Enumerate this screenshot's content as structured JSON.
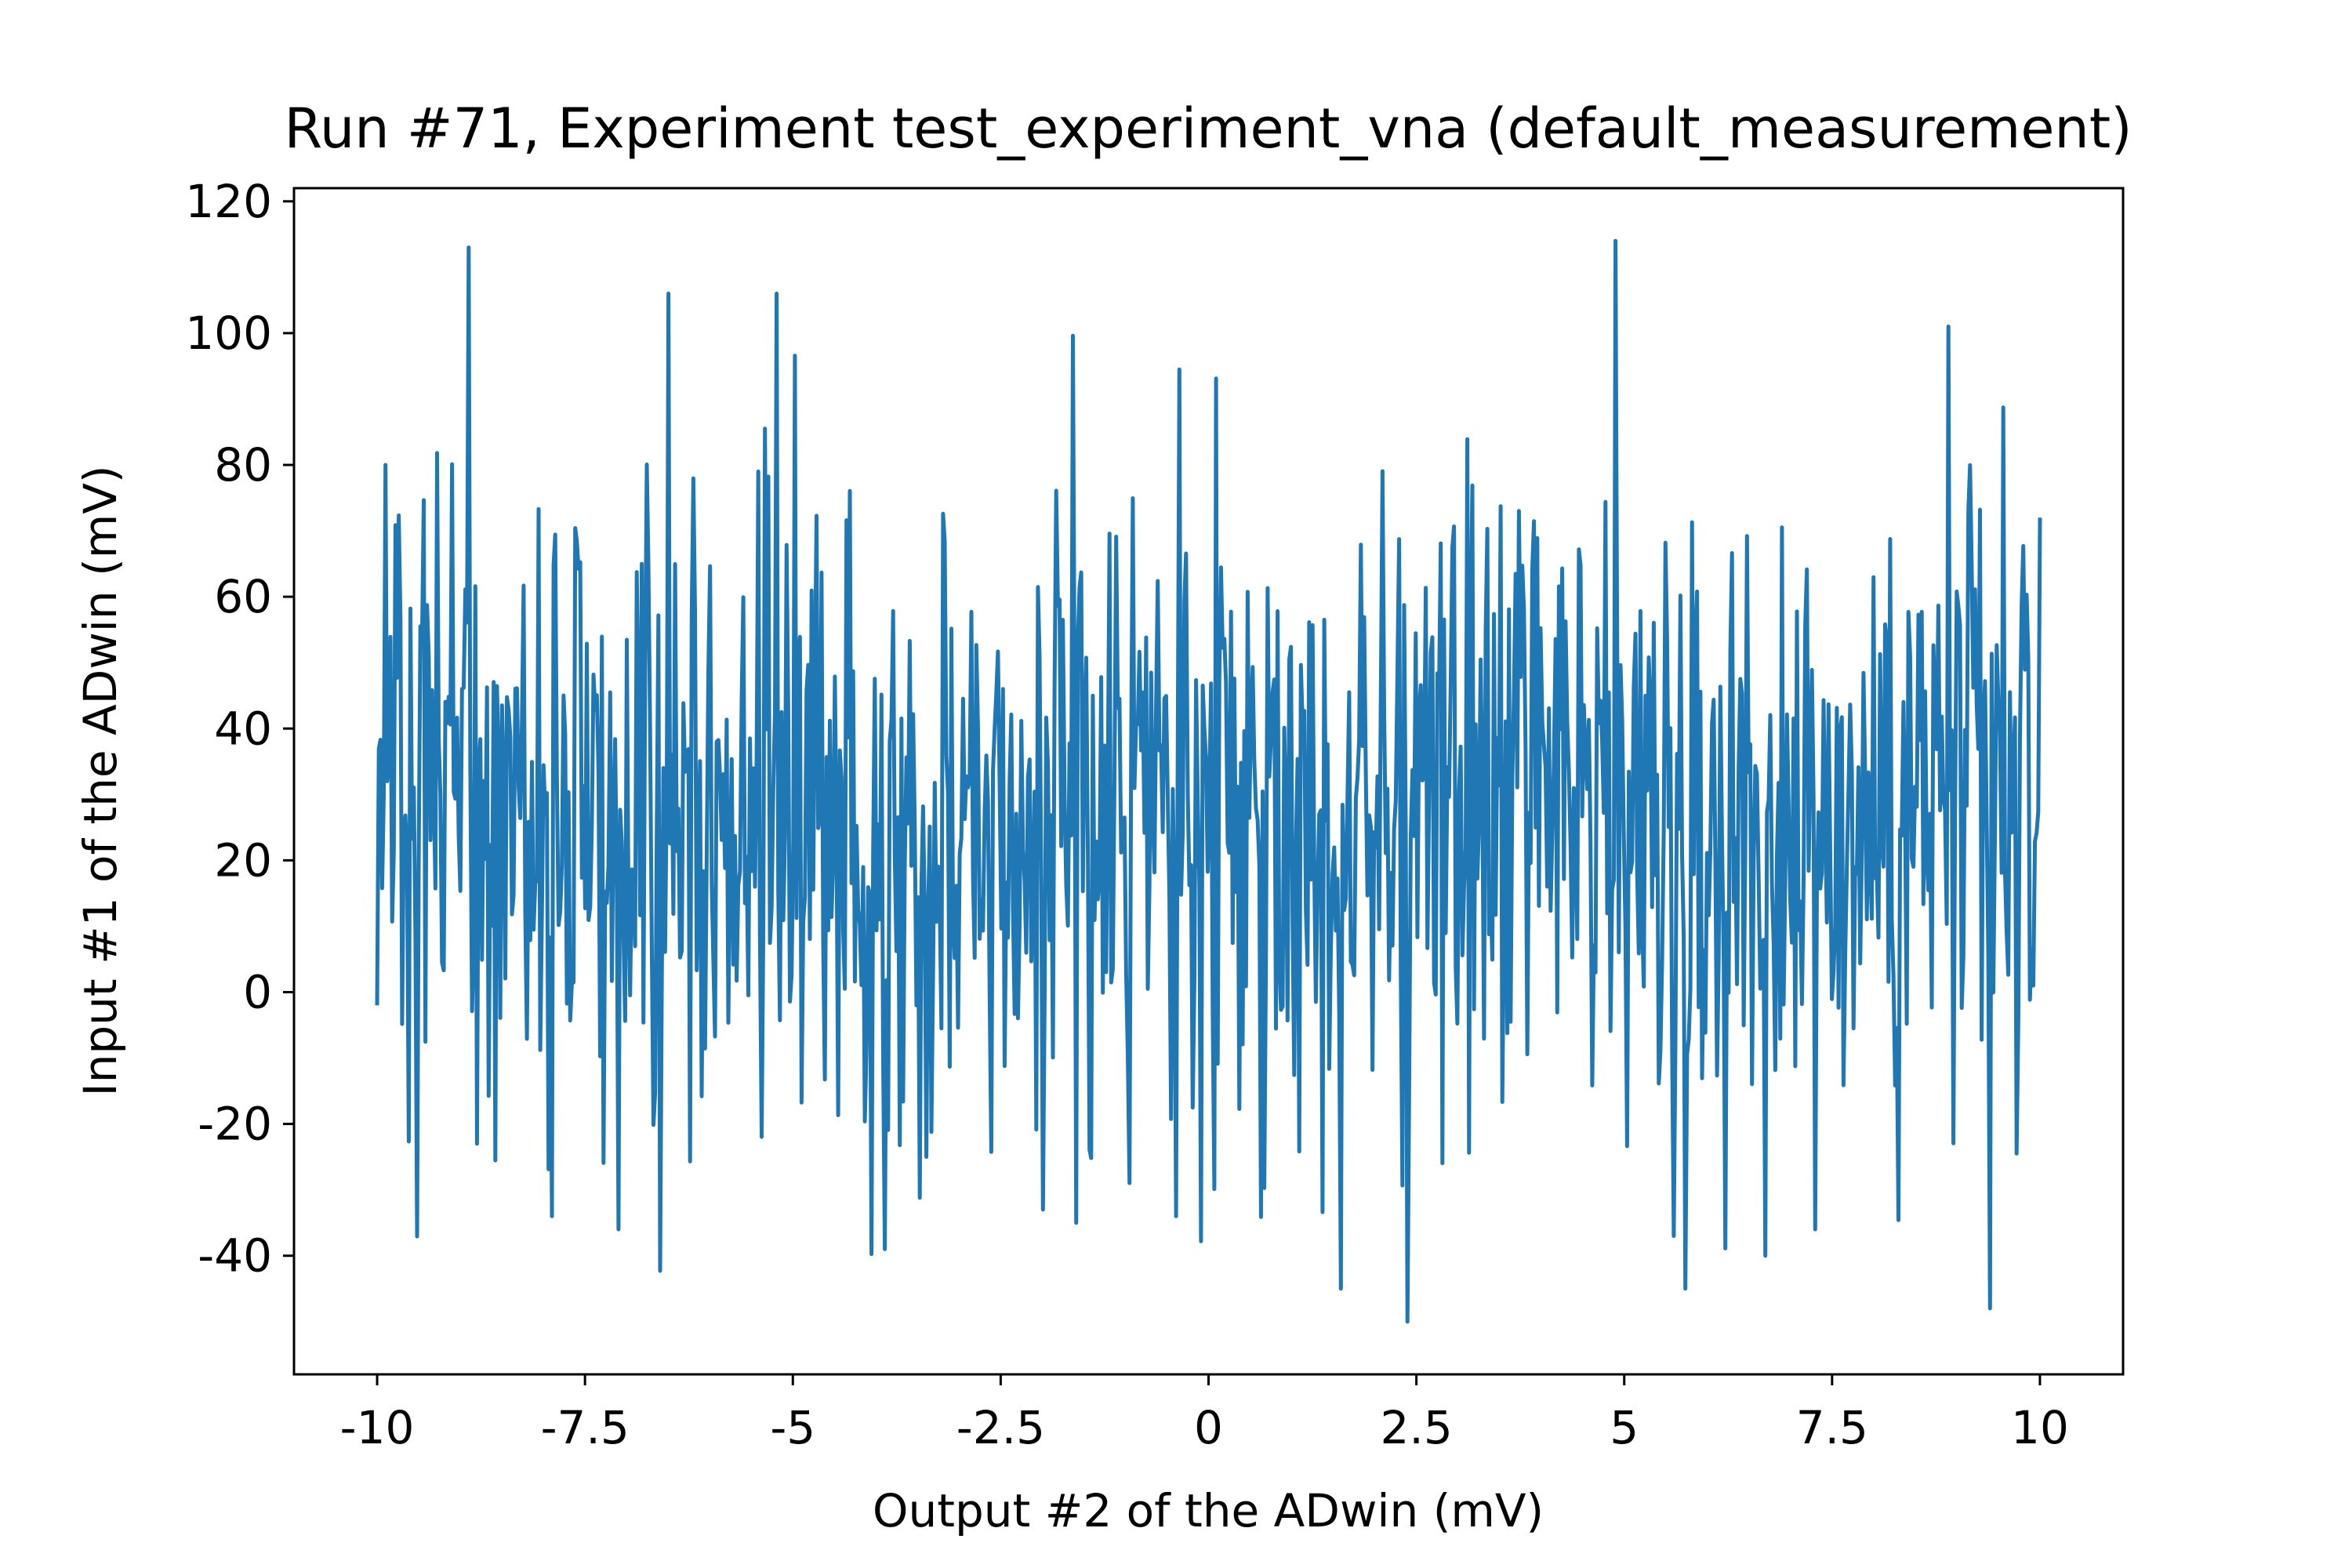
{
  "chart_data": {
    "type": "line",
    "title": "Run #71, Experiment test_experiment_vna (default_measurement)",
    "xlabel": "Output #2 of the ADwin (mV)",
    "ylabel": "Input #1 of the ADwin (mV)",
    "xlim": [
      -11.0,
      11.0
    ],
    "ylim": [
      -58.0,
      122.0
    ],
    "xticks": [
      -10,
      -7.5,
      -5,
      -2.5,
      0,
      2.5,
      5,
      7.5,
      10
    ],
    "xtick_labels": [
      "-10",
      "-7.5",
      "-5",
      "-2.5",
      "0",
      "2.5",
      "5",
      "7.5",
      "10"
    ],
    "yticks": [
      -40,
      -20,
      0,
      20,
      40,
      60,
      80,
      100,
      120
    ],
    "ytick_labels": [
      "-40",
      "-20",
      "0",
      "20",
      "40",
      "60",
      "80",
      "100",
      "120"
    ],
    "grid": false,
    "series": [
      {
        "color": "#1f77b4",
        "x_range": [
          -10,
          10
        ],
        "n_points": 1000,
        "anchors": [
          [
            -10.0,
            -2
          ],
          [
            -9.9,
            80
          ],
          [
            -8.9,
            113
          ],
          [
            -8.8,
            -23
          ],
          [
            -7.9,
            -34
          ],
          [
            -7.1,
            -36
          ],
          [
            -6.5,
            106
          ],
          [
            -5.2,
            106
          ],
          [
            -3.9,
            -39
          ],
          [
            -3.4,
            -25
          ],
          [
            -2.0,
            -33
          ],
          [
            -1.6,
            -35
          ],
          [
            -0.4,
            -34
          ],
          [
            0.0,
            30
          ],
          [
            1.6,
            -45
          ],
          [
            2.4,
            -50
          ],
          [
            4.9,
            114
          ],
          [
            5.6,
            -37
          ],
          [
            6.7,
            -40
          ],
          [
            7.3,
            -36
          ],
          [
            8.9,
            101
          ],
          [
            9.4,
            -48
          ],
          [
            10.0,
            72
          ]
        ],
        "mean": 27,
        "spread": 24
      }
    ]
  }
}
